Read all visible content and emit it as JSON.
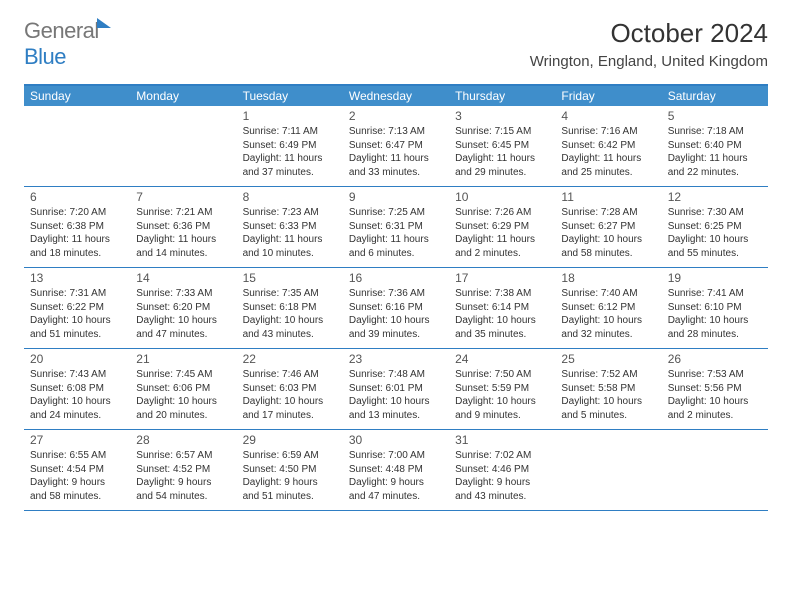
{
  "brand": {
    "part1": "General",
    "part2": "Blue"
  },
  "title": "October 2024",
  "location": "Wrington, England, United Kingdom",
  "colors": {
    "header_bg": "#3f8ecb",
    "border": "#2f7ec3",
    "text": "#333333",
    "bg": "#ffffff"
  },
  "weekdays": [
    "Sunday",
    "Monday",
    "Tuesday",
    "Wednesday",
    "Thursday",
    "Friday",
    "Saturday"
  ],
  "weeks": [
    [
      null,
      null,
      {
        "n": "1",
        "sr": "7:11 AM",
        "ss": "6:49 PM",
        "dl": "11 hours and 37 minutes."
      },
      {
        "n": "2",
        "sr": "7:13 AM",
        "ss": "6:47 PM",
        "dl": "11 hours and 33 minutes."
      },
      {
        "n": "3",
        "sr": "7:15 AM",
        "ss": "6:45 PM",
        "dl": "11 hours and 29 minutes."
      },
      {
        "n": "4",
        "sr": "7:16 AM",
        "ss": "6:42 PM",
        "dl": "11 hours and 25 minutes."
      },
      {
        "n": "5",
        "sr": "7:18 AM",
        "ss": "6:40 PM",
        "dl": "11 hours and 22 minutes."
      }
    ],
    [
      {
        "n": "6",
        "sr": "7:20 AM",
        "ss": "6:38 PM",
        "dl": "11 hours and 18 minutes."
      },
      {
        "n": "7",
        "sr": "7:21 AM",
        "ss": "6:36 PM",
        "dl": "11 hours and 14 minutes."
      },
      {
        "n": "8",
        "sr": "7:23 AM",
        "ss": "6:33 PM",
        "dl": "11 hours and 10 minutes."
      },
      {
        "n": "9",
        "sr": "7:25 AM",
        "ss": "6:31 PM",
        "dl": "11 hours and 6 minutes."
      },
      {
        "n": "10",
        "sr": "7:26 AM",
        "ss": "6:29 PM",
        "dl": "11 hours and 2 minutes."
      },
      {
        "n": "11",
        "sr": "7:28 AM",
        "ss": "6:27 PM",
        "dl": "10 hours and 58 minutes."
      },
      {
        "n": "12",
        "sr": "7:30 AM",
        "ss": "6:25 PM",
        "dl": "10 hours and 55 minutes."
      }
    ],
    [
      {
        "n": "13",
        "sr": "7:31 AM",
        "ss": "6:22 PM",
        "dl": "10 hours and 51 minutes."
      },
      {
        "n": "14",
        "sr": "7:33 AM",
        "ss": "6:20 PM",
        "dl": "10 hours and 47 minutes."
      },
      {
        "n": "15",
        "sr": "7:35 AM",
        "ss": "6:18 PM",
        "dl": "10 hours and 43 minutes."
      },
      {
        "n": "16",
        "sr": "7:36 AM",
        "ss": "6:16 PM",
        "dl": "10 hours and 39 minutes."
      },
      {
        "n": "17",
        "sr": "7:38 AM",
        "ss": "6:14 PM",
        "dl": "10 hours and 35 minutes."
      },
      {
        "n": "18",
        "sr": "7:40 AM",
        "ss": "6:12 PM",
        "dl": "10 hours and 32 minutes."
      },
      {
        "n": "19",
        "sr": "7:41 AM",
        "ss": "6:10 PM",
        "dl": "10 hours and 28 minutes."
      }
    ],
    [
      {
        "n": "20",
        "sr": "7:43 AM",
        "ss": "6:08 PM",
        "dl": "10 hours and 24 minutes."
      },
      {
        "n": "21",
        "sr": "7:45 AM",
        "ss": "6:06 PM",
        "dl": "10 hours and 20 minutes."
      },
      {
        "n": "22",
        "sr": "7:46 AM",
        "ss": "6:03 PM",
        "dl": "10 hours and 17 minutes."
      },
      {
        "n": "23",
        "sr": "7:48 AM",
        "ss": "6:01 PM",
        "dl": "10 hours and 13 minutes."
      },
      {
        "n": "24",
        "sr": "7:50 AM",
        "ss": "5:59 PM",
        "dl": "10 hours and 9 minutes."
      },
      {
        "n": "25",
        "sr": "7:52 AM",
        "ss": "5:58 PM",
        "dl": "10 hours and 5 minutes."
      },
      {
        "n": "26",
        "sr": "7:53 AM",
        "ss": "5:56 PM",
        "dl": "10 hours and 2 minutes."
      }
    ],
    [
      {
        "n": "27",
        "sr": "6:55 AM",
        "ss": "4:54 PM",
        "dl": "9 hours and 58 minutes."
      },
      {
        "n": "28",
        "sr": "6:57 AM",
        "ss": "4:52 PM",
        "dl": "9 hours and 54 minutes."
      },
      {
        "n": "29",
        "sr": "6:59 AM",
        "ss": "4:50 PM",
        "dl": "9 hours and 51 minutes."
      },
      {
        "n": "30",
        "sr": "7:00 AM",
        "ss": "4:48 PM",
        "dl": "9 hours and 47 minutes."
      },
      {
        "n": "31",
        "sr": "7:02 AM",
        "ss": "4:46 PM",
        "dl": "9 hours and 43 minutes."
      },
      null,
      null
    ]
  ],
  "labels": {
    "sunrise": "Sunrise: ",
    "sunset": "Sunset: ",
    "daylight": "Daylight: "
  }
}
